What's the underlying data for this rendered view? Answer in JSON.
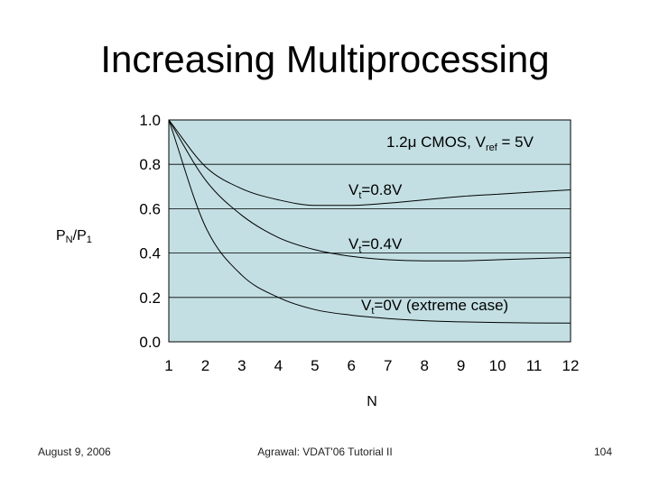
{
  "slide": {
    "title": "Increasing Multiprocessing",
    "footer_left": "August 9, 2006",
    "footer_center": "Agrawal: VDAT'06 Tutorial II",
    "footer_right": "104"
  },
  "colors": {
    "plot_background": "#c3dfe3",
    "gridline": "#000000",
    "curve": "#000000"
  },
  "chart_data": {
    "type": "line",
    "title": "",
    "xlabel": "N",
    "ylabel": {
      "main": "P",
      "sub1": "N",
      "sep": "/P",
      "sub2": "1"
    },
    "xlim": [
      1,
      12
    ],
    "ylim": [
      0.0,
      1.0
    ],
    "x_ticks": [
      1,
      2,
      3,
      4,
      5,
      6,
      7,
      8,
      9,
      10,
      11,
      12
    ],
    "y_ticks": [
      "0.0",
      "0.2",
      "0.4",
      "0.6",
      "0.8",
      "1.0"
    ],
    "grid": {
      "horizontal": true,
      "vertical": false
    },
    "annotation_header": {
      "main": "1.2μ CMOS, V",
      "sub": "ref",
      "tail": " = 5V"
    },
    "series": [
      {
        "name": "Vt=0.8V",
        "label": {
          "main": "V",
          "sub": "t",
          "tail": "=0.8V"
        },
        "x": [
          1,
          2,
          3,
          4,
          5,
          6,
          7,
          8,
          9,
          10,
          11,
          12
        ],
        "y": [
          1.0,
          0.79,
          0.69,
          0.64,
          0.615,
          0.615,
          0.625,
          0.64,
          0.655,
          0.665,
          0.675,
          0.685
        ]
      },
      {
        "name": "Vt=0.4V",
        "label": {
          "main": "V",
          "sub": "t",
          "tail": "=0.4V"
        },
        "x": [
          1,
          2,
          3,
          4,
          5,
          6,
          7,
          8,
          9,
          10,
          11,
          12
        ],
        "y": [
          1.0,
          0.73,
          0.57,
          0.47,
          0.415,
          0.385,
          0.37,
          0.365,
          0.365,
          0.37,
          0.375,
          0.38
        ]
      },
      {
        "name": "Vt=0V (extreme case)",
        "label": {
          "main": "V",
          "sub": "t",
          "tail": "=0V (extreme case)"
        },
        "x": [
          1,
          2,
          3,
          4,
          5,
          6,
          7,
          8,
          9,
          10,
          11,
          12
        ],
        "y": [
          1.0,
          0.52,
          0.3,
          0.2,
          0.145,
          0.12,
          0.105,
          0.095,
          0.09,
          0.087,
          0.085,
          0.084
        ]
      }
    ]
  }
}
